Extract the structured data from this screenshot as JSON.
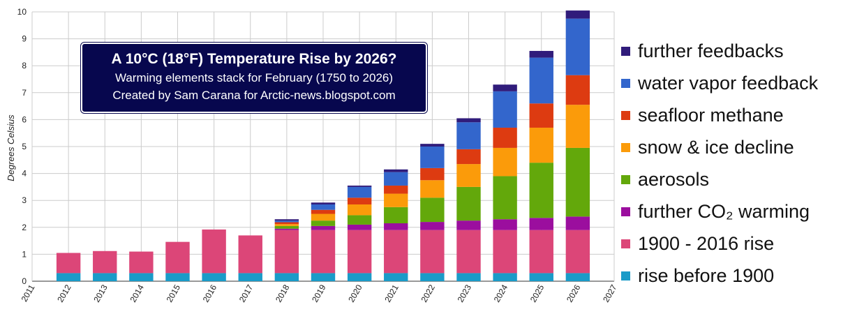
{
  "chart_data": {
    "type": "bar",
    "stacked": true,
    "title": "A 10°C (18°F) Temperature Rise by 2026?",
    "subtitle_lines": [
      "Warming elements stack for February (1750 to 2026)",
      "Created by Sam Carana for Arctic-news.blogspot.com"
    ],
    "xlabel": "",
    "ylabel": "Degrees Celsius",
    "xlim": [
      2011,
      2027
    ],
    "ylim": [
      0,
      10
    ],
    "x_ticks": [
      "2011",
      "2012",
      "2013",
      "2014",
      "2015",
      "2016",
      "2017",
      "2018",
      "2019",
      "2020",
      "2021",
      "2022",
      "2023",
      "2024",
      "2025",
      "2026",
      "2027"
    ],
    "y_ticks": [
      "0",
      "1",
      "2",
      "3",
      "4",
      "5",
      "6",
      "7",
      "8",
      "9",
      "10"
    ],
    "grid": true,
    "legend_position": "right",
    "categories": [
      2012,
      2013,
      2014,
      2015,
      2016,
      2017,
      2018,
      2019,
      2020,
      2021,
      2022,
      2023,
      2024,
      2025,
      2026
    ],
    "series": [
      {
        "name": "rise before 1900",
        "color": "#1a9bc8",
        "values": [
          0.3,
          0.3,
          0.3,
          0.3,
          0.3,
          0.3,
          0.3,
          0.3,
          0.3,
          0.3,
          0.3,
          0.3,
          0.3,
          0.3,
          0.3
        ]
      },
      {
        "name": "1900 - 2016 rise",
        "color": "#dc4678",
        "values": [
          0.75,
          0.82,
          0.8,
          1.16,
          1.62,
          1.4,
          1.6,
          1.6,
          1.6,
          1.6,
          1.6,
          1.6,
          1.6,
          1.6,
          1.6
        ]
      },
      {
        "name": "further CO₂  warming",
        "color": "#9b0e9e",
        "values": [
          0,
          0,
          0,
          0,
          0,
          0,
          0.05,
          0.15,
          0.2,
          0.25,
          0.3,
          0.35,
          0.4,
          0.45,
          0.5
        ]
      },
      {
        "name": "aerosols",
        "color": "#63a80b",
        "values": [
          0,
          0,
          0,
          0,
          0,
          0,
          0.1,
          0.2,
          0.35,
          0.6,
          0.9,
          1.25,
          1.6,
          2.05,
          2.55
        ]
      },
      {
        "name": "snow & ice decline",
        "color": "#fb9b0a",
        "values": [
          0,
          0,
          0,
          0,
          0,
          0,
          0.07,
          0.25,
          0.4,
          0.5,
          0.65,
          0.85,
          1.05,
          1.3,
          1.6
        ]
      },
      {
        "name": "seafloor methane",
        "color": "#dd3b11",
        "values": [
          0,
          0,
          0,
          0,
          0,
          0,
          0.07,
          0.15,
          0.25,
          0.3,
          0.45,
          0.55,
          0.75,
          0.9,
          1.1
        ]
      },
      {
        "name": "water vapor feedback",
        "color": "#3366cc",
        "values": [
          0,
          0,
          0,
          0,
          0,
          0,
          0.06,
          0.2,
          0.4,
          0.5,
          0.8,
          1.0,
          1.35,
          1.7,
          2.1
        ]
      },
      {
        "name": "further feedbacks",
        "color": "#301c7b",
        "values": [
          0,
          0,
          0,
          0,
          0,
          0,
          0.05,
          0.07,
          0.05,
          0.1,
          0.1,
          0.15,
          0.25,
          0.25,
          0.3
        ]
      }
    ]
  }
}
